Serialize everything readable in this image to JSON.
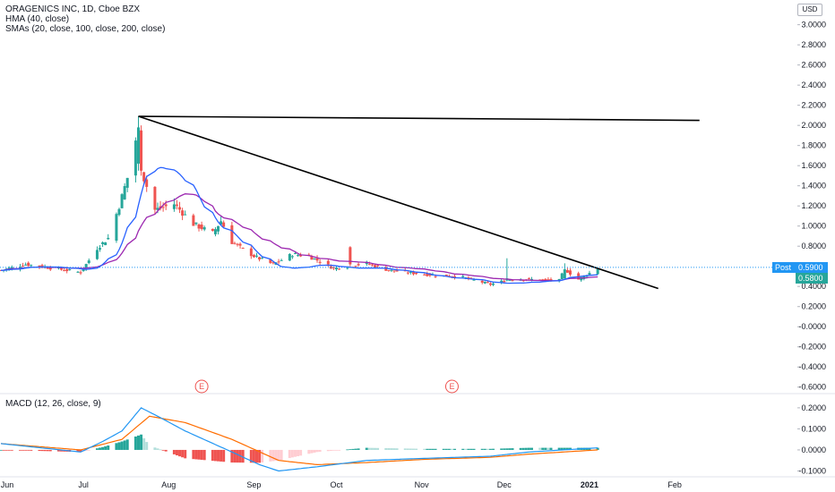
{
  "header": {
    "title": "ORAGENICS INC, 1D, Cboe BZX",
    "indicator_1": "HMA (40, close)",
    "indicator_2": "SMAs (20, close, 100, close, 200, close)",
    "currency": "USD"
  },
  "price_tags": {
    "post_label": "Post",
    "post_value": "0.5900",
    "close_value": "0.5800"
  },
  "colors": {
    "up": "#26a69a",
    "down": "#ef5350",
    "hma": "#2962ff",
    "sma": "#9c27b0",
    "macd": "#2196f3",
    "signal": "#ff6d00",
    "post_tag": "#2196f3",
    "close_tag": "#26a69a",
    "trendline": "#000000"
  },
  "chart_data": [
    {
      "type": "candlestick",
      "title": "ORAGENICS INC, 1D, Cboe BZX",
      "yaxis": {
        "ticks": [
          "3.0000",
          "2.8000",
          "2.6000",
          "2.4000",
          "2.2000",
          "2.0000",
          "1.8000",
          "1.6000",
          "1.4000",
          "1.2000",
          "1.0000",
          "0.8000",
          "0.6000",
          "0.4000",
          "0.2000",
          "-0.0000",
          "-0.2000",
          "-0.4000",
          "-0.6000"
        ],
        "range": [
          -0.62,
          3.05
        ]
      },
      "xaxis": {
        "labels": [
          "Jun",
          "Jul",
          "Aug",
          "Sep",
          "Oct",
          "Nov",
          "Dec",
          "2021",
          "Feb"
        ],
        "range": [
          "2020-06-01",
          "2021-02-28"
        ]
      },
      "last_price": 0.59,
      "close_price": 0.58,
      "earnings_markers": [
        {
          "date": "2020-08-13",
          "label": "E"
        },
        {
          "date": "2020-11-12",
          "label": "E"
        }
      ],
      "key_points": [
        {
          "date": "2020-06-01",
          "close": 0.56
        },
        {
          "date": "2020-06-10",
          "close": 0.62
        },
        {
          "date": "2020-06-30",
          "close": 0.54
        },
        {
          "date": "2020-07-06",
          "close": 0.78
        },
        {
          "date": "2020-07-10",
          "close": 0.88
        },
        {
          "date": "2020-07-14",
          "close": 1.2
        },
        {
          "date": "2020-07-17",
          "close": 1.48
        },
        {
          "date": "2020-07-21",
          "close": 1.98
        },
        {
          "date": "2020-07-22",
          "close": 1.55
        },
        {
          "date": "2020-07-27",
          "close": 1.16
        },
        {
          "date": "2020-08-03",
          "close": 1.22
        },
        {
          "date": "2020-08-10",
          "close": 1.02
        },
        {
          "date": "2020-08-17",
          "close": 0.93
        },
        {
          "date": "2020-08-20",
          "close": 1.05
        },
        {
          "date": "2020-08-24",
          "close": 0.84
        },
        {
          "date": "2020-09-01",
          "close": 0.7
        },
        {
          "date": "2020-09-08",
          "close": 0.62
        },
        {
          "date": "2020-09-15",
          "close": 0.72
        },
        {
          "date": "2020-09-21",
          "close": 0.7
        },
        {
          "date": "2020-09-30",
          "close": 0.58
        },
        {
          "date": "2020-10-12",
          "close": 0.63
        },
        {
          "date": "2020-10-20",
          "close": 0.56
        },
        {
          "date": "2020-11-02",
          "close": 0.52
        },
        {
          "date": "2020-11-16",
          "close": 0.49
        },
        {
          "date": "2020-11-26",
          "close": 0.42
        },
        {
          "date": "2020-12-03",
          "close": 0.47
        },
        {
          "date": "2020-12-10",
          "close": 0.47
        },
        {
          "date": "2020-12-21",
          "close": 0.46
        },
        {
          "date": "2020-12-23",
          "close": 0.57
        },
        {
          "date": "2020-12-28",
          "close": 0.47
        },
        {
          "date": "2021-01-04",
          "close": 0.58
        }
      ],
      "trendlines": [
        {
          "from": {
            "date": "2020-07-21",
            "price": 2.09
          },
          "to": {
            "date": "2021-02-10",
            "price": 2.05
          }
        },
        {
          "from": {
            "date": "2020-07-21",
            "price": 2.09
          },
          "to": {
            "date": "2021-01-26",
            "price": 0.38
          }
        }
      ]
    },
    {
      "type": "macd",
      "title": "MACD (12, 26, close, 9)",
      "yaxis": {
        "ticks": [
          "0.2000",
          "0.1000",
          "0.0000",
          "-0.1000"
        ],
        "range": [
          -0.115,
          0.225
        ]
      },
      "macd_points": [
        {
          "date": "2020-06-01",
          "value": 0.03
        },
        {
          "date": "2020-06-30",
          "value": -0.01
        },
        {
          "date": "2020-07-08",
          "value": 0.04
        },
        {
          "date": "2020-07-15",
          "value": 0.09
        },
        {
          "date": "2020-07-22",
          "value": 0.2
        },
        {
          "date": "2020-07-28",
          "value": 0.16
        },
        {
          "date": "2020-08-07",
          "value": 0.09
        },
        {
          "date": "2020-08-24",
          "value": -0.01
        },
        {
          "date": "2020-09-03",
          "value": -0.07
        },
        {
          "date": "2020-09-10",
          "value": -0.1
        },
        {
          "date": "2020-09-24",
          "value": -0.08
        },
        {
          "date": "2020-10-12",
          "value": -0.05
        },
        {
          "date": "2020-11-02",
          "value": -0.04
        },
        {
          "date": "2020-11-26",
          "value": -0.03
        },
        {
          "date": "2020-12-10",
          "value": -0.01
        },
        {
          "date": "2021-01-04",
          "value": 0.01
        }
      ],
      "signal_points": [
        {
          "date": "2020-06-01",
          "value": 0.03
        },
        {
          "date": "2020-06-30",
          "value": 0.0
        },
        {
          "date": "2020-07-15",
          "value": 0.05
        },
        {
          "date": "2020-07-25",
          "value": 0.16
        },
        {
          "date": "2020-08-07",
          "value": 0.13
        },
        {
          "date": "2020-08-24",
          "value": 0.05
        },
        {
          "date": "2020-09-10",
          "value": -0.05
        },
        {
          "date": "2020-09-24",
          "value": -0.07
        },
        {
          "date": "2020-10-12",
          "value": -0.06
        },
        {
          "date": "2020-11-02",
          "value": -0.045
        },
        {
          "date": "2020-11-26",
          "value": -0.035
        },
        {
          "date": "2020-12-10",
          "value": -0.02
        },
        {
          "date": "2021-01-04",
          "value": 0.0
        }
      ]
    }
  ]
}
